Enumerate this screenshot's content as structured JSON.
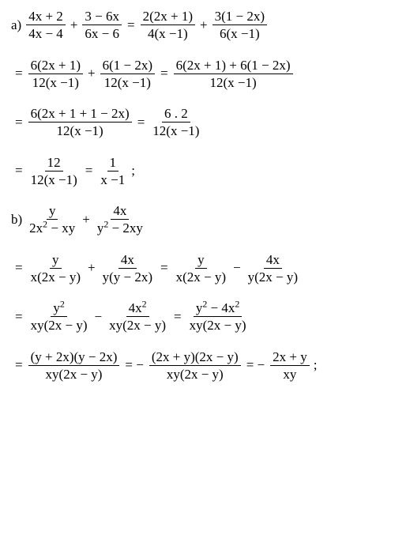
{
  "font": {
    "family": "Times New Roman",
    "size_pt": 17,
    "color": "#000000"
  },
  "background_color": "#ffffff",
  "lines": [
    {
      "id": "a1",
      "segments": [
        {
          "type": "label",
          "text": "a)"
        },
        {
          "type": "frac",
          "num": "4x + 2",
          "den": "4x − 4"
        },
        {
          "type": "op",
          "text": "+"
        },
        {
          "type": "frac",
          "num": "3 − 6x",
          "den": "6x − 6"
        },
        {
          "type": "eq",
          "text": "="
        },
        {
          "type": "frac",
          "num": "2(2x + 1)",
          "den": "4(x −1)"
        },
        {
          "type": "op",
          "text": "+"
        },
        {
          "type": "frac",
          "num": "3(1 − 2x)",
          "den": "6(x −1)"
        }
      ]
    },
    {
      "id": "a2",
      "segments": [
        {
          "type": "eq",
          "text": "="
        },
        {
          "type": "frac",
          "num": "6(2x + 1)",
          "den": "12(x −1)"
        },
        {
          "type": "op",
          "text": "+"
        },
        {
          "type": "frac",
          "num": "6(1 − 2x)",
          "den": "12(x −1)"
        },
        {
          "type": "eq",
          "text": "="
        },
        {
          "type": "frac",
          "num": "6(2x + 1) + 6(1 − 2x)",
          "den": "12(x −1)"
        }
      ]
    },
    {
      "id": "a3",
      "segments": [
        {
          "type": "eq",
          "text": "="
        },
        {
          "type": "frac",
          "num": "6(2x + 1 + 1 − 2x)",
          "den": "12(x −1)"
        },
        {
          "type": "eq",
          "text": "="
        },
        {
          "type": "frac",
          "num": "6 . 2",
          "den": "12(x −1)"
        }
      ]
    },
    {
      "id": "a4",
      "segments": [
        {
          "type": "eq",
          "text": "="
        },
        {
          "type": "frac",
          "num": "12",
          "den": "12(x −1)"
        },
        {
          "type": "eq",
          "text": "="
        },
        {
          "type": "frac",
          "num": "1",
          "den": "x −1"
        },
        {
          "type": "semi",
          "text": ";"
        }
      ]
    },
    {
      "id": "b1",
      "segments": [
        {
          "type": "label",
          "text": "b)"
        },
        {
          "type": "frac",
          "num": "y",
          "den_html": "2x<span class='sup'>2</span> − xy"
        },
        {
          "type": "op",
          "text": "+"
        },
        {
          "type": "frac",
          "num": "4x",
          "den_html": "y<span class='sup'>2</span> − 2xy"
        }
      ]
    },
    {
      "id": "b2",
      "segments": [
        {
          "type": "eq",
          "text": "="
        },
        {
          "type": "frac",
          "num": "y",
          "den": "x(2x − y)"
        },
        {
          "type": "op",
          "text": "+"
        },
        {
          "type": "frac",
          "num": "4x",
          "den": "y(y − 2x)"
        },
        {
          "type": "eq",
          "text": "="
        },
        {
          "type": "frac",
          "num": "y",
          "den": "x(2x − y)"
        },
        {
          "type": "op",
          "text": "−"
        },
        {
          "type": "frac",
          "num": "4x",
          "den": "y(2x − y)"
        }
      ]
    },
    {
      "id": "b3",
      "segments": [
        {
          "type": "eq",
          "text": "="
        },
        {
          "type": "frac",
          "num_html": "y<span class='sup'>2</span>",
          "den": "xy(2x − y)"
        },
        {
          "type": "op",
          "text": "−"
        },
        {
          "type": "frac",
          "num_html": "4x<span class='sup'>2</span>",
          "den": "xy(2x − y)"
        },
        {
          "type": "eq",
          "text": "="
        },
        {
          "type": "frac",
          "num_html": "y<span class='sup'>2</span> − 4x<span class='sup'>2</span>",
          "den": "xy(2x − y)"
        }
      ]
    },
    {
      "id": "b4",
      "segments": [
        {
          "type": "eq",
          "text": "="
        },
        {
          "type": "frac",
          "num": "(y + 2x)(y − 2x)",
          "den": "xy(2x − y)"
        },
        {
          "type": "eq",
          "text": "= −"
        },
        {
          "type": "frac",
          "num": "(2x + y)(2x − y)",
          "den": "xy(2x − y)"
        },
        {
          "type": "eq",
          "text": "= −"
        },
        {
          "type": "frac",
          "num": "2x + y",
          "den": "xy"
        },
        {
          "type": "semi",
          "text": ";"
        }
      ]
    }
  ]
}
